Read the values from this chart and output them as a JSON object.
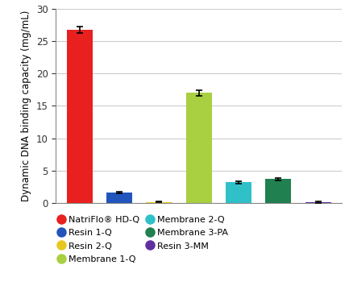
{
  "categories": [
    "NatriFlo® HD-Q",
    "Resin 1-Q",
    "Resin 2-Q",
    "Membrane 1-Q",
    "Membrane 2-Q",
    "Membrane 3-PA",
    "Resin 3-MM"
  ],
  "values": [
    26.8,
    1.6,
    0.15,
    17.0,
    3.2,
    3.7,
    0.15
  ],
  "errors": [
    0.5,
    0.15,
    0.05,
    0.4,
    0.2,
    0.2,
    0.1
  ],
  "colors": [
    "#e82020",
    "#2255bb",
    "#e8c820",
    "#a8d040",
    "#30c0c8",
    "#208050",
    "#6030a0"
  ],
  "ylabel": "Dynamic DNA binding capacity (mg/mL)",
  "ylim": [
    0,
    30
  ],
  "yticks": [
    0,
    5,
    10,
    15,
    20,
    25,
    30
  ],
  "legend_labels_col1": [
    "NatriFlo® HD-Q",
    "Resin 1-Q",
    "Resin 2-Q",
    "Membrane 1-Q"
  ],
  "legend_labels_col2": [
    "Membrane 2-Q",
    "Membrane 3-PA",
    "Resin 3-MM"
  ],
  "legend_colors_col1": [
    "#e82020",
    "#2255bb",
    "#e8c820",
    "#a8d040"
  ],
  "legend_colors_col2": [
    "#30c0c8",
    "#208050",
    "#6030a0"
  ],
  "background_color": "#ffffff",
  "grid_color": "#cccccc"
}
